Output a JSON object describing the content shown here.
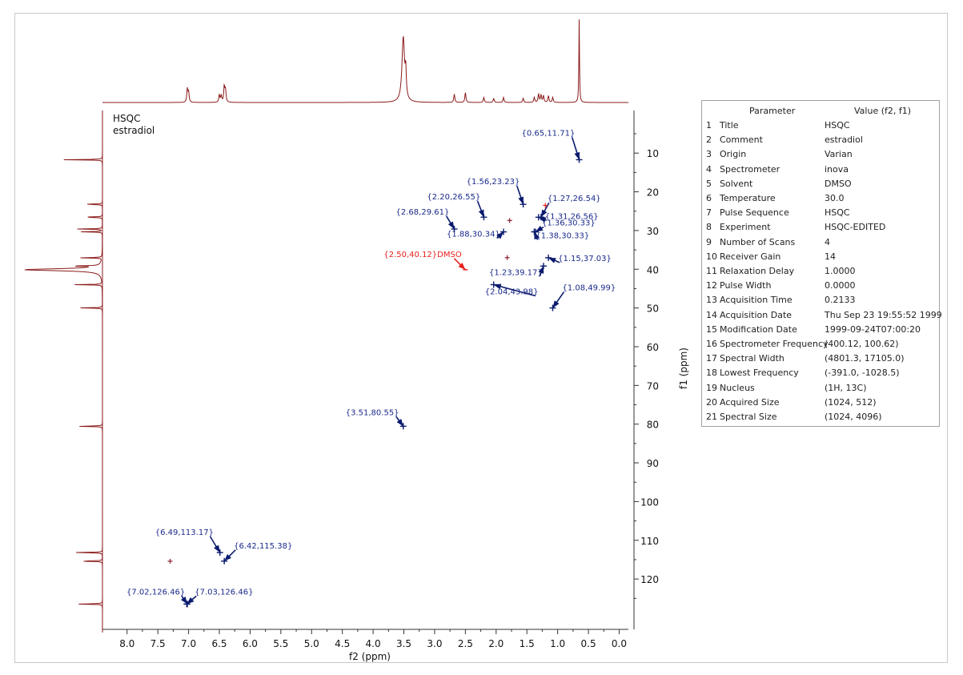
{
  "chart_data": {
    "type": "scatter",
    "title": "HSQC",
    "subtitle": "estradiol",
    "xlabel": "f2 (ppm)",
    "ylabel": "f1 (ppm)",
    "xlim": [
      8.4,
      -0.15
    ],
    "ylim": [
      -1,
      133
    ],
    "x_ticks": [
      "8.0",
      "7.5",
      "7.0",
      "6.5",
      "6.0",
      "5.5",
      "5.0",
      "4.5",
      "4.0",
      "3.5",
      "3.0",
      "2.5",
      "2.0",
      "1.5",
      "1.0",
      "0.5",
      "0.0"
    ],
    "y_ticks": [
      "10",
      "20",
      "30",
      "40",
      "50",
      "60",
      "70",
      "80",
      "90",
      "100",
      "110",
      "120"
    ],
    "grid": false,
    "colors": {
      "peak": "#0a1a6e",
      "label": "#1a2a8a",
      "solvent": "#e8201c",
      "projection": "#8b1a1a"
    },
    "peaks": [
      {
        "x": 0.65,
        "y": 11.71,
        "label": "{0.65,11.71}"
      },
      {
        "x": 1.56,
        "y": 23.23,
        "label": "{1.56,23.23}"
      },
      {
        "x": 2.2,
        "y": 26.55,
        "label": "{2.20,26.55}"
      },
      {
        "x": 1.27,
        "y": 26.54,
        "label": "{1.27,26.54}"
      },
      {
        "x": 2.68,
        "y": 29.61,
        "label": "{2.68,29.61}"
      },
      {
        "x": 1.36,
        "y": 30.33,
        "label": "{1.36,30.33}"
      },
      {
        "x": 1.31,
        "y": 26.56,
        "label": "{1.31,26.56}"
      },
      {
        "x": 1.88,
        "y": 30.34,
        "label": "{1.88,30.34}"
      },
      {
        "x": 1.38,
        "y": 30.33,
        "label": "{1.38,30.33}"
      },
      {
        "x": 1.15,
        "y": 37.03,
        "label": "{1.15,37.03}"
      },
      {
        "x": 1.23,
        "y": 39.17,
        "label": "{1.23,39.17}"
      },
      {
        "x": 2.04,
        "y": 43.98,
        "label": "{2.04,43.98}"
      },
      {
        "x": 1.08,
        "y": 49.99,
        "label": "{1.08,49.99}"
      },
      {
        "x": 3.51,
        "y": 80.55,
        "label": "{3.51,80.55}"
      },
      {
        "x": 6.49,
        "y": 113.17,
        "label": "{6.49,113.17}"
      },
      {
        "x": 6.42,
        "y": 115.38,
        "label": "{6.42,115.38}"
      },
      {
        "x": 7.02,
        "y": 126.46,
        "label": "{7.02,126.46}"
      },
      {
        "x": 7.03,
        "y": 126.46,
        "label": "{7.03,126.46}"
      }
    ],
    "solvent_peak": {
      "x": 2.5,
      "y": 40.12,
      "label": "{2.50,40.12}DMSO"
    },
    "minor_peaks": [
      {
        "x": 1.78,
        "y": 27.4
      },
      {
        "x": 1.82,
        "y": 37.0
      },
      {
        "x": 1.2,
        "y": 23.5
      },
      {
        "x": 7.3,
        "y": 115.4
      }
    ],
    "f2_projection_peaks": [
      {
        "x": 7.02,
        "h": 0.16
      },
      {
        "x": 7.0,
        "h": 0.12
      },
      {
        "x": 6.5,
        "h": 0.09
      },
      {
        "x": 6.47,
        "h": 0.08
      },
      {
        "x": 6.42,
        "h": 0.19
      },
      {
        "x": 6.4,
        "h": 0.15
      },
      {
        "x": 3.51,
        "h": 0.78
      },
      {
        "x": 3.47,
        "h": 0.3
      },
      {
        "x": 2.68,
        "h": 0.1
      },
      {
        "x": 2.5,
        "h": 0.12
      },
      {
        "x": 2.2,
        "h": 0.06
      },
      {
        "x": 2.04,
        "h": 0.05
      },
      {
        "x": 1.88,
        "h": 0.06
      },
      {
        "x": 1.56,
        "h": 0.05
      },
      {
        "x": 1.38,
        "h": 0.06
      },
      {
        "x": 1.31,
        "h": 0.1
      },
      {
        "x": 1.27,
        "h": 0.09
      },
      {
        "x": 1.23,
        "h": 0.08
      },
      {
        "x": 1.15,
        "h": 0.08
      },
      {
        "x": 1.08,
        "h": 0.06
      },
      {
        "x": 0.65,
        "h": 1.0
      }
    ],
    "f1_projection_peaks": [
      {
        "y": 11.71,
        "h": 0.5
      },
      {
        "y": 23.23,
        "h": 0.26
      },
      {
        "y": 26.55,
        "h": 0.3
      },
      {
        "y": 29.61,
        "h": 0.32
      },
      {
        "y": 30.34,
        "h": 0.28
      },
      {
        "y": 37.03,
        "h": 0.3
      },
      {
        "y": 39.17,
        "h": 0.42
      },
      {
        "y": 40.12,
        "h": 1.0
      },
      {
        "y": 43.98,
        "h": 0.35
      },
      {
        "y": 49.99,
        "h": 0.3
      },
      {
        "y": 80.55,
        "h": 0.36
      },
      {
        "y": 113.17,
        "h": 0.38
      },
      {
        "y": 115.38,
        "h": 0.36
      },
      {
        "y": 126.46,
        "h": 0.36
      }
    ]
  },
  "parameters": {
    "header_parameter": "Parameter",
    "header_value": "Value (f2, f1)",
    "rows": [
      {
        "num": "1",
        "name": "Title",
        "value": "HSQC"
      },
      {
        "num": "2",
        "name": "Comment",
        "value": "estradiol"
      },
      {
        "num": "3",
        "name": "Origin",
        "value": "Varian"
      },
      {
        "num": "4",
        "name": "Spectrometer",
        "value": "inova"
      },
      {
        "num": "5",
        "name": "Solvent",
        "value": "DMSO"
      },
      {
        "num": "6",
        "name": "Temperature",
        "value": "30.0"
      },
      {
        "num": "7",
        "name": "Pulse Sequence",
        "value": "HSQC"
      },
      {
        "num": "8",
        "name": "Experiment",
        "value": "HSQC-EDITED"
      },
      {
        "num": "9",
        "name": "Number of Scans",
        "value": "4"
      },
      {
        "num": "10",
        "name": "Receiver Gain",
        "value": "14"
      },
      {
        "num": "11",
        "name": "Relaxation Delay",
        "value": "1.0000"
      },
      {
        "num": "12",
        "name": "Pulse Width",
        "value": "0.0000"
      },
      {
        "num": "13",
        "name": "Acquisition Time",
        "value": "0.2133"
      },
      {
        "num": "14",
        "name": "Acquisition Date",
        "value": "Thu Sep 23 19:55:52 1999"
      },
      {
        "num": "15",
        "name": "Modification Date",
        "value": "1999-09-24T07:00:20"
      },
      {
        "num": "16",
        "name": "Spectrometer Frequency",
        "value": "(400.12, 100.62)"
      },
      {
        "num": "17",
        "name": "Spectral Width",
        "value": "(4801.3, 17105.0)"
      },
      {
        "num": "18",
        "name": "Lowest Frequency",
        "value": "(-391.0, -1028.5)"
      },
      {
        "num": "19",
        "name": "Nucleus",
        "value": "(1H, 13C)"
      },
      {
        "num": "20",
        "name": "Acquired Size",
        "value": "(1024, 512)"
      },
      {
        "num": "21",
        "name": "Spectral Size",
        "value": "(1024, 4096)"
      }
    ]
  }
}
